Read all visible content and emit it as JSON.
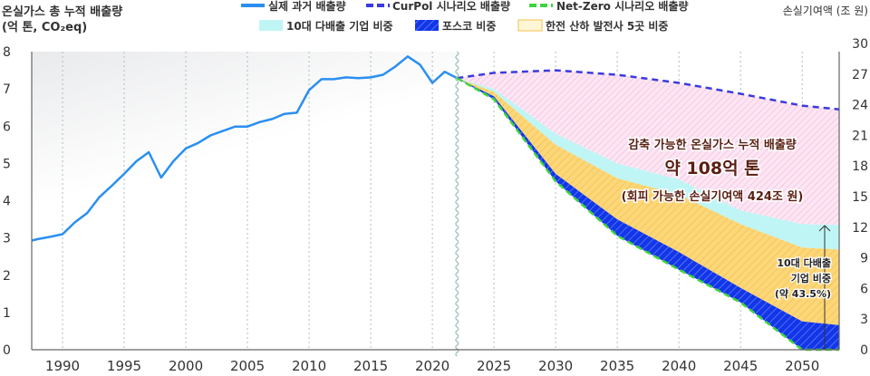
{
  "chart_data": {
    "type": "area",
    "ylabel_left_line1": "온실가스 총 누적 배출량",
    "ylabel_left_line2": "(억 톤, CO₂eq)",
    "ylabel_right": "손실기여액 (조 원)",
    "ylim_left": [
      0,
      8
    ],
    "ylim_right": [
      0,
      30
    ],
    "xlim": [
      1987.5,
      2053
    ],
    "yticks_left": [
      "0",
      "1",
      "2",
      "3",
      "4",
      "5",
      "6",
      "7",
      "8"
    ],
    "yticks_right": [
      "0",
      "3",
      "6",
      "9",
      "12",
      "15",
      "18",
      "21",
      "24",
      "27",
      "30"
    ],
    "xticks": [
      "1990",
      "1995",
      "2000",
      "2005",
      "2010",
      "2015",
      "2020",
      "2025",
      "2030",
      "2035",
      "2040",
      "2045",
      "2050"
    ],
    "grid": "vertical dotted every 5 years",
    "legend_placement": "top",
    "legend": {
      "actual": "실제 과거 배출량",
      "curpol": "CurPol 시나리오 배출량",
      "netzero": "Net-Zero 시나리오 배출량",
      "top10": "10대 다배출 기업 비중",
      "posco": "포스코 비중",
      "kepco": "한전 산하 발전사 5곳 비중"
    },
    "colors": {
      "actual": "#2b8ff0",
      "curpol": "#3a3adf",
      "netzero": "#3ed43e",
      "top10": "#bff5f5",
      "posco": "#1033e8",
      "kepco": "#fcd97a",
      "reducible": "#fbd6ee"
    },
    "actual": {
      "x": [
        1987.5,
        1988,
        1989,
        1990,
        1991,
        1992,
        1993,
        1994,
        1995,
        1996,
        1997,
        1998,
        1999,
        2000,
        2001,
        2002,
        2003,
        2004,
        2005,
        2006,
        2007,
        2008,
        2009,
        2010,
        2011,
        2012,
        2013,
        2014,
        2015,
        2016,
        2017,
        2018,
        2019,
        2020,
        2021,
        2022
      ],
      "y": [
        2.93,
        2.97,
        3.03,
        3.1,
        3.42,
        3.67,
        4.1,
        4.4,
        4.72,
        5.06,
        5.3,
        4.62,
        5.06,
        5.4,
        5.55,
        5.75,
        5.87,
        5.99,
        5.99,
        6.11,
        6.19,
        6.33,
        6.36,
        6.97,
        7.26,
        7.26,
        7.31,
        7.29,
        7.31,
        7.38,
        7.6,
        7.87,
        7.65,
        7.16,
        7.46,
        7.29
      ]
    },
    "scenario_x": [
      2022,
      2025,
      2030,
      2035,
      2040,
      2045,
      2050,
      2053
    ],
    "curpol": [
      7.29,
      7.43,
      7.5,
      7.38,
      7.16,
      6.87,
      6.55,
      6.45
    ],
    "top10_upper": [
      7.29,
      7.0,
      5.8,
      5.0,
      4.57,
      3.74,
      3.37,
      3.35
    ],
    "kepco_upper": [
      7.29,
      6.92,
      5.5,
      4.6,
      4.16,
      3.37,
      2.74,
      2.69
    ],
    "posco_upper": [
      7.29,
      6.8,
      4.72,
      3.5,
      2.62,
      1.66,
      0.76,
      0.66
    ],
    "netzero": [
      7.29,
      6.72,
      4.52,
      3.06,
      2.15,
      1.27,
      0,
      0
    ],
    "annotations": {
      "reducible_title": "감축 가능한 온실가스 누적 배출량",
      "reducible_value": "약 108억 톤",
      "avoidable_loss": "(회피 가능한 손실기여액 424조 원)",
      "top10_line1": "10대 다배출",
      "top10_line2": "기업 비중",
      "top10_line3": "(약 43.5%)"
    }
  }
}
